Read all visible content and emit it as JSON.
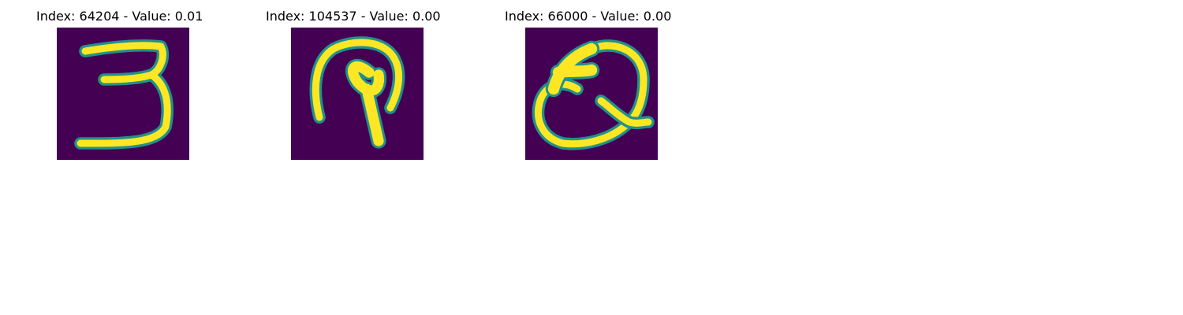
{
  "figure": {
    "background": "#ffffff",
    "colormap": {
      "name": "viridis",
      "low": "#440154",
      "mid": "#21918c",
      "high": "#fde725"
    },
    "panels": [
      {
        "title": "Index: 64204 - Value: 0.01",
        "depicts": "handwritten digit 3"
      },
      {
        "title": "Index: 104537 - Value: 0.00",
        "depicts": "handwritten character resembling an arch with a stem"
      },
      {
        "title": "Index: 66000 - Value: 0.00",
        "depicts": "handwritten letter Q"
      }
    ]
  }
}
